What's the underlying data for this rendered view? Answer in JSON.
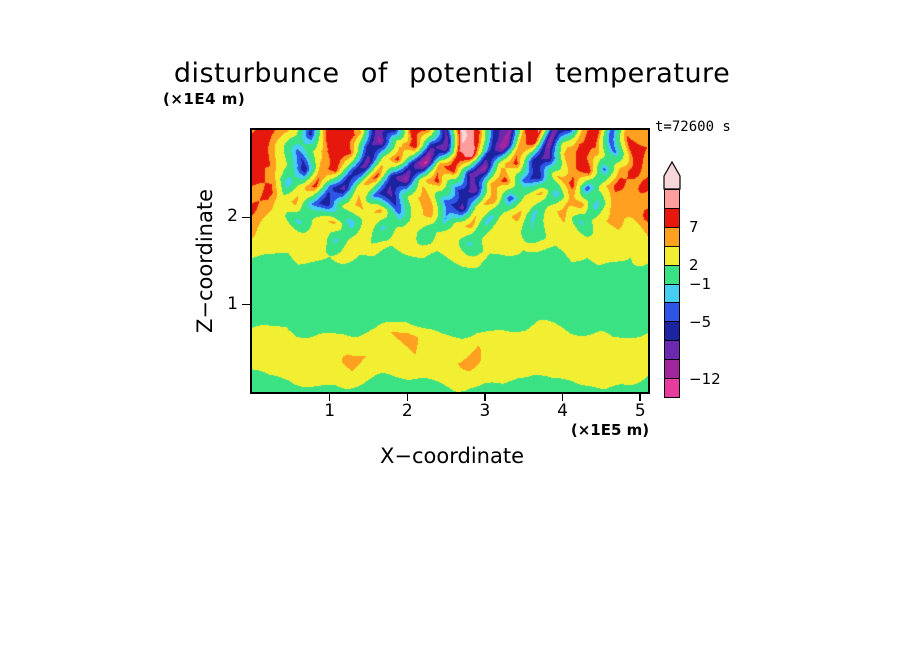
{
  "chart_data": {
    "type": "heatmap",
    "title": "disturbunce of potential temperature",
    "time_label": "t=72600 s",
    "xlabel": "X−coordinate",
    "ylabel": "Z−coordinate",
    "x_unit_label": "(×1E5 m)",
    "y_unit_label": "(×1E4 m)",
    "x_range": [
      0,
      5.1
    ],
    "z_range": [
      0,
      3.0
    ],
    "x_ticks": [
      1,
      2,
      3,
      4,
      5
    ],
    "z_ticks": [
      1,
      2
    ],
    "legend_position": "right",
    "levels": [
      -12,
      -9,
      -7,
      -5,
      -3,
      -1,
      2,
      5,
      7,
      9,
      11
    ],
    "colors": [
      "#e83c9c",
      "#a1259d",
      "#6d28b0",
      "#1c23a0",
      "#2e55e6",
      "#45cdf2",
      "#3be283",
      "#f2ef33",
      "#ffa020",
      "#e6180e",
      "#ff9d9d",
      "#f6d7d9"
    ],
    "colorbar_labels": [
      {
        "text": "7",
        "level": 7
      },
      {
        "text": "2",
        "level": 2
      },
      {
        "text": "−1",
        "level": -1
      },
      {
        "text": "−5",
        "level": -5
      },
      {
        "text": "−12",
        "level": -12
      }
    ],
    "grid": {
      "nx": 26,
      "nz": 16,
      "order": "rows top (z=3.0) to bottom (z=0.0)",
      "values": [
        [
          6,
          8,
          7,
          3,
          -6,
          8,
          9,
          6,
          -7,
          -13,
          8,
          9,
          -8,
          12,
          8,
          -6,
          -9,
          7,
          10,
          -8,
          -6,
          6,
          9,
          -5,
          7,
          6
        ],
        [
          8,
          9,
          4,
          -4,
          3,
          9,
          7,
          -5,
          -10,
          4,
          9,
          -6,
          -9,
          8,
          10,
          -4,
          -12,
          6,
          8,
          -10,
          4,
          8,
          6,
          -4,
          8,
          7
        ],
        [
          7,
          8,
          2,
          -7,
          6,
          8,
          -4,
          -9,
          3,
          8,
          -5,
          -13,
          6,
          9,
          -7,
          -10,
          4,
          8,
          -6,
          -8,
          6,
          9,
          -4,
          6,
          8,
          5
        ],
        [
          8,
          6,
          -3,
          4,
          8,
          -4,
          -8,
          4,
          8,
          -6,
          -10,
          4,
          8,
          -5,
          -9,
          5,
          8,
          -4,
          -7,
          5,
          8,
          -5,
          4,
          8,
          6,
          8
        ],
        [
          6,
          8,
          3,
          6,
          -3,
          -7,
          3,
          6,
          -4,
          -8,
          3,
          7,
          -4,
          -8,
          4,
          7,
          -5,
          3,
          6,
          -3,
          5,
          7,
          -3,
          5,
          7,
          6
        ],
        [
          8,
          6,
          4,
          -2,
          3,
          6,
          -3,
          4,
          6,
          -4,
          4,
          6,
          -3,
          4,
          6,
          -3,
          4,
          6,
          -2,
          4,
          6,
          -2,
          4,
          6,
          4,
          8
        ],
        [
          6,
          4,
          3,
          4,
          5,
          -2,
          3,
          4,
          -2,
          3,
          4,
          -1,
          3,
          4,
          -2,
          3,
          4,
          3,
          -1,
          3,
          4,
          3,
          3,
          4,
          3,
          6
        ],
        [
          4,
          3,
          2,
          3,
          3,
          2,
          3,
          2,
          3,
          2,
          3,
          3,
          2,
          3,
          3,
          2,
          3,
          2,
          3,
          2,
          3,
          2,
          3,
          3,
          2,
          4
        ],
        [
          1,
          1,
          0,
          1,
          0,
          1,
          0,
          0,
          1,
          0,
          0,
          1,
          0,
          0,
          1,
          0,
          0,
          1,
          0,
          0,
          1,
          0,
          1,
          0,
          1,
          1
        ],
        [
          0,
          0,
          0,
          0,
          0,
          0,
          0,
          0,
          0,
          0,
          0,
          0,
          0,
          0,
          0,
          0,
          0,
          0,
          0,
          0,
          0,
          0,
          0,
          0,
          0,
          0
        ],
        [
          0,
          0,
          0,
          0,
          0,
          0,
          0,
          0,
          0,
          0,
          0,
          0,
          0,
          0,
          0,
          0,
          0,
          0,
          0,
          0,
          0,
          0,
          0,
          0,
          0,
          0
        ],
        [
          0,
          0,
          1,
          0,
          0,
          0,
          1,
          0,
          0,
          0,
          1,
          0,
          0,
          0,
          1,
          0,
          0,
          0,
          1,
          0,
          0,
          0,
          1,
          0,
          0,
          0
        ],
        [
          3,
          3,
          4,
          3,
          3,
          5,
          4,
          3,
          3,
          5,
          6,
          4,
          3,
          4,
          5,
          4,
          3,
          3,
          5,
          4,
          3,
          4,
          5,
          3,
          3,
          3
        ],
        [
          3,
          4,
          5,
          4,
          3,
          4,
          6,
          5,
          3,
          4,
          5,
          3,
          4,
          5,
          6,
          4,
          3,
          5,
          4,
          3,
          4,
          5,
          4,
          5,
          4,
          3
        ],
        [
          2,
          3,
          3,
          4,
          3,
          3,
          4,
          3,
          3,
          4,
          3,
          3,
          4,
          4,
          3,
          3,
          4,
          3,
          3,
          4,
          3,
          3,
          4,
          3,
          3,
          2
        ],
        [
          0,
          1,
          0,
          0,
          1,
          0,
          0,
          1,
          0,
          0,
          1,
          0,
          0,
          1,
          0,
          0,
          1,
          0,
          0,
          1,
          0,
          0,
          1,
          0,
          0,
          0
        ]
      ]
    }
  }
}
